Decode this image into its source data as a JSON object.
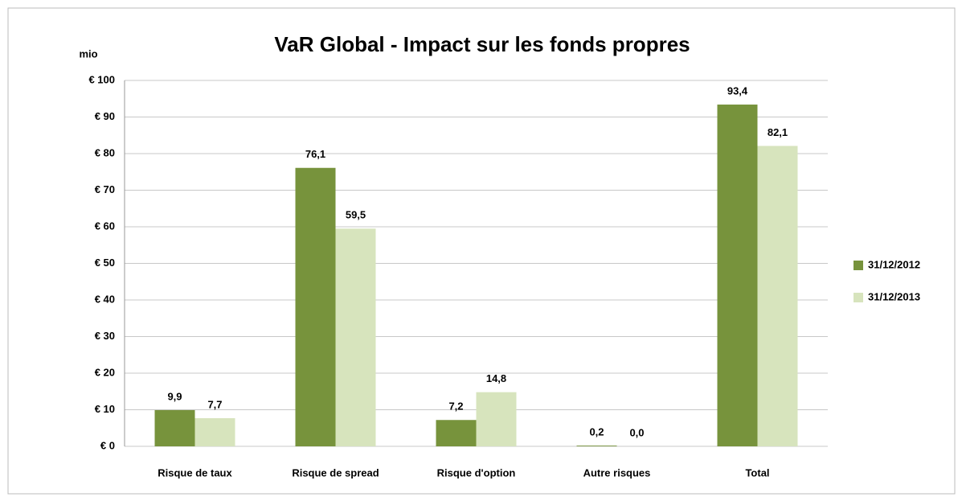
{
  "chart_data": {
    "type": "bar",
    "title": "VaR Global - Impact sur les fonds propres",
    "y_unit": "mio",
    "categories": [
      "Risque de taux",
      "Risque de spread",
      "Risque d'option",
      "Autre risques",
      "Total"
    ],
    "series": [
      {
        "name": "31/12/2012",
        "color": "#77933c",
        "values": [
          9.9,
          76.1,
          7.2,
          0.2,
          93.4
        ],
        "value_labels": [
          "9,9",
          "76,1",
          "7,2",
          "0,2",
          "93,4"
        ]
      },
      {
        "name": "31/12/2013",
        "color": "#d7e4bd",
        "values": [
          7.7,
          59.5,
          14.8,
          0.0,
          82.1
        ],
        "value_labels": [
          "7,7",
          "59,5",
          "14,8",
          "0,0",
          "82,1"
        ]
      }
    ],
    "ylim": [
      0,
      100
    ],
    "yticks": [
      {
        "value": 0,
        "label": "€ 0"
      },
      {
        "value": 10,
        "label": "€ 10"
      },
      {
        "value": 20,
        "label": "€ 20"
      },
      {
        "value": 30,
        "label": "€ 30"
      },
      {
        "value": 40,
        "label": "€ 40"
      },
      {
        "value": 50,
        "label": "€ 50"
      },
      {
        "value": 60,
        "label": "€ 60"
      },
      {
        "value": 70,
        "label": "€ 70"
      },
      {
        "value": 80,
        "label": "€ 80"
      },
      {
        "value": 90,
        "label": "€ 90"
      },
      {
        "value": 100,
        "label": "€ 100"
      }
    ],
    "grid": true,
    "legend": "right"
  }
}
